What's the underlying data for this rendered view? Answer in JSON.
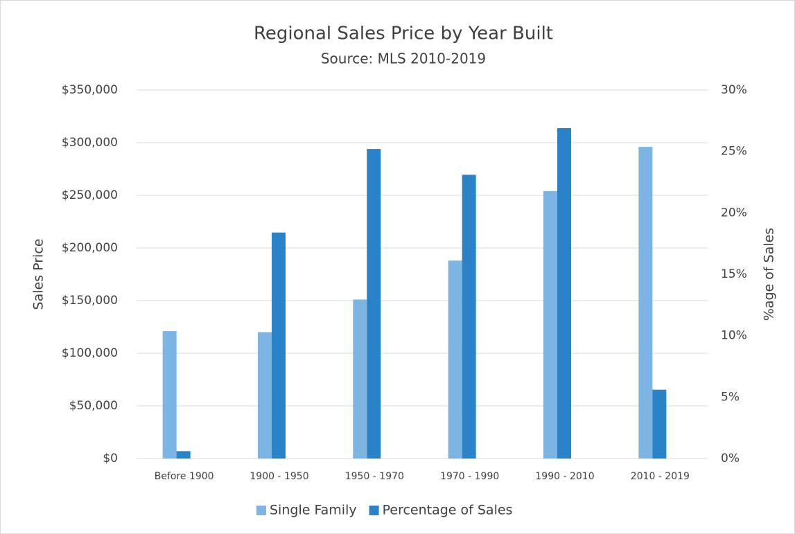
{
  "chart_data": {
    "type": "bar",
    "title": "Regional Sales Price by Year Built",
    "subtitle": "Source: MLS 2010-2019",
    "y_label": "Sales Price",
    "y2_label": "%age of Sales",
    "categories": [
      "Before 1900",
      "1900 - 1950",
      "1950 - 1970",
      "1970 - 1990",
      "1990 - 2010",
      "2010 - 2019"
    ],
    "series": [
      {
        "name": "Single Family",
        "color": "#7cb5e4",
        "values": [
          121000,
          120000,
          151000,
          188000,
          254000,
          296000
        ]
      },
      {
        "name": "Percentage of Sales",
        "color": "#2a82c9",
        "axis": "y2",
        "values": [
          0.6,
          18.4,
          25.2,
          23.1,
          26.9,
          5.6
        ]
      }
    ],
    "ylim": [
      0,
      350000
    ],
    "yticks": [
      {
        "value": 0,
        "label": "$0"
      },
      {
        "value": 50000,
        "label": "$50,000"
      },
      {
        "value": 100000,
        "label": "$100,000"
      },
      {
        "value": 150000,
        "label": "$150,000"
      },
      {
        "value": 200000,
        "label": "$200,000"
      },
      {
        "value": 250000,
        "label": "$250,000"
      },
      {
        "value": 300000,
        "label": "$300,000"
      },
      {
        "value": 350000,
        "label": "$350,000"
      }
    ],
    "y2lim": [
      0,
      30
    ],
    "y2ticks": [
      {
        "value": 0,
        "label": "0%"
      },
      {
        "value": 5,
        "label": "5%"
      },
      {
        "value": 10,
        "label": "10%"
      },
      {
        "value": 15,
        "label": "15%"
      },
      {
        "value": 20,
        "label": "20%"
      },
      {
        "value": 25,
        "label": "25%"
      },
      {
        "value": 30,
        "label": "30%"
      }
    ],
    "grid": true,
    "legend": "bottom"
  }
}
